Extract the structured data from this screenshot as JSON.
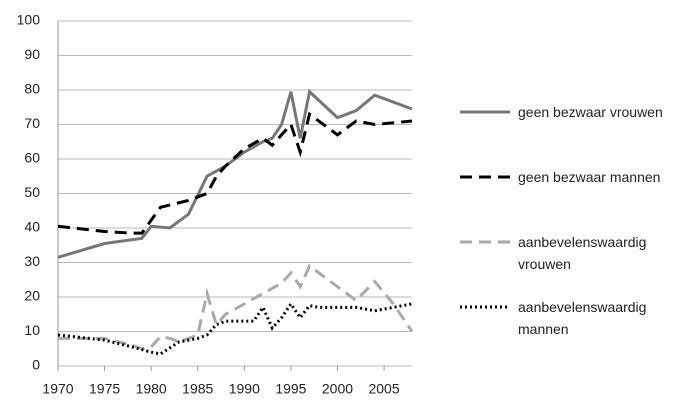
{
  "chart_data": {
    "type": "line",
    "xlim": [
      1970,
      2008
    ],
    "xticks": [
      1970,
      1975,
      1980,
      1985,
      1990,
      1995,
      2000,
      2005
    ],
    "ylim": [
      0,
      100
    ],
    "yticks": [
      0,
      10,
      20,
      30,
      40,
      50,
      60,
      70,
      80,
      90,
      100
    ],
    "grid": true,
    "legend": "right",
    "series": [
      {
        "name": "geen bezwaar vrouwen",
        "color": "#777777",
        "dash": "solid",
        "x": [
          1970,
          1975,
          1979,
          1980,
          1982,
          1984,
          1986,
          1988,
          1990,
          1992,
          1993,
          1994,
          1995,
          1996,
          1997,
          2000,
          2002,
          2004,
          2008
        ],
        "values": [
          31.5,
          35.5,
          37,
          40.5,
          40,
          44,
          55,
          58,
          62,
          65,
          66,
          70,
          79.5,
          66,
          79.5,
          72,
          74,
          78.5,
          74.5
        ]
      },
      {
        "name": "geen bezwaar mannen",
        "color": "#000000",
        "dash": "dashed",
        "x": [
          1970,
          1975,
          1978,
          1979,
          1981,
          1984,
          1986,
          1987,
          1988,
          1990,
          1992,
          1993,
          1995,
          1996,
          1997,
          1998,
          2000,
          2002,
          2004,
          2008
        ],
        "values": [
          40.5,
          39,
          38.5,
          38.5,
          46,
          48,
          50,
          55,
          58,
          63,
          66,
          64,
          70,
          62,
          73,
          71,
          67,
          71,
          70,
          71
        ]
      },
      {
        "name": "aanbevelenswaardig vrouwen",
        "color": "#aaaaaa",
        "dash": "dashed",
        "x": [
          1970,
          1975,
          1978,
          1979,
          1980,
          1981,
          1982,
          1983,
          1984,
          1985,
          1986,
          1987,
          1988,
          1990,
          1992,
          1994,
          1995,
          1996,
          1997,
          2000,
          2002,
          2004,
          2006,
          2008
        ],
        "values": [
          8,
          8,
          6,
          5,
          5.5,
          8.5,
          8,
          7,
          8,
          9,
          21,
          12,
          15,
          18,
          21,
          24,
          27,
          23,
          29,
          23,
          19,
          24.5,
          18,
          10
        ]
      },
      {
        "name": "aanbevelenswaardig mannen",
        "color": "#000000",
        "dash": "dotted",
        "x": [
          1970,
          1975,
          1978,
          1980,
          1981,
          1983,
          1985,
          1986,
          1987,
          1988,
          1990,
          1991,
          1992,
          1993,
          1994,
          1995,
          1996,
          1997,
          1998,
          2000,
          2002,
          2004,
          2006,
          2008
        ],
        "values": [
          9,
          7.5,
          5.5,
          4,
          3.5,
          7,
          8,
          9,
          12,
          13,
          13,
          13,
          17,
          11,
          14,
          18,
          14,
          17.5,
          17,
          17,
          17,
          16,
          17,
          18
        ]
      }
    ]
  }
}
